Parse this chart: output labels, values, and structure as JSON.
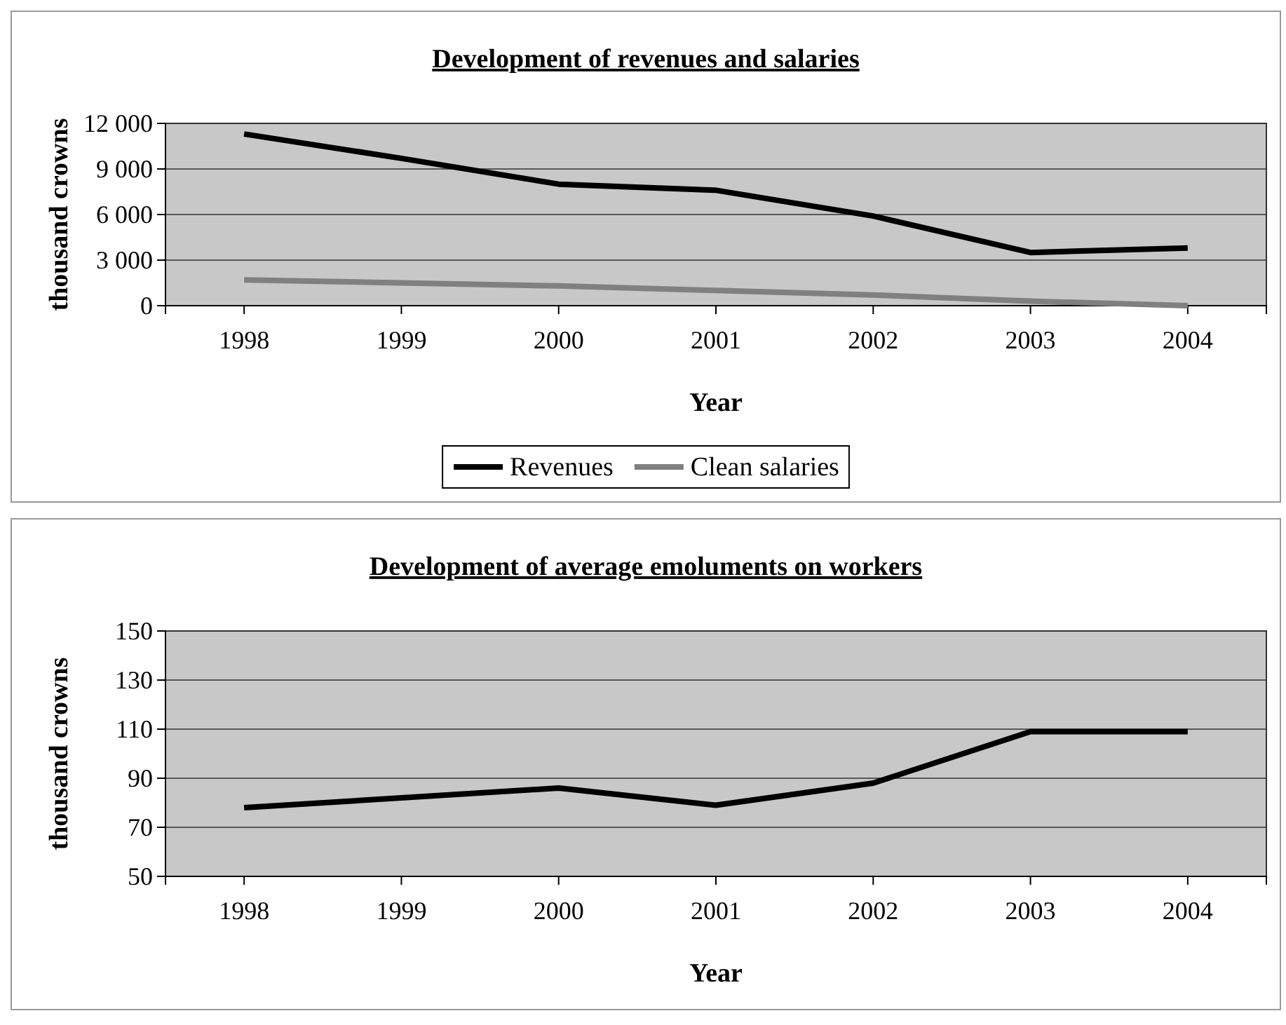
{
  "chart_data": [
    {
      "type": "line",
      "title": "Development of revenues and salaries",
      "xlabel": "Year",
      "ylabel": "thousand crowns",
      "categories": [
        "1998",
        "1999",
        "2000",
        "2001",
        "2002",
        "2003",
        "2004"
      ],
      "series": [
        {
          "name": "Revenues",
          "color": "#000000",
          "values": [
            11300,
            9700,
            8000,
            7600,
            5900,
            3500,
            3800
          ]
        },
        {
          "name": "Clean salaries",
          "color": "#808080",
          "values": [
            1700,
            1500,
            1300,
            1000,
            700,
            300,
            0
          ]
        }
      ],
      "ylim": [
        0,
        12000
      ],
      "yticks": [
        0,
        {
          "value": 3000,
          "label": "3 000"
        },
        {
          "value": 6000,
          "label": "6 000"
        },
        {
          "value": 9000,
          "label": "9 000"
        },
        {
          "value": 12000,
          "label": "12 000"
        }
      ],
      "grid": "y",
      "legend": "bottom",
      "marker": "none"
    },
    {
      "type": "line",
      "title": "Development of average emoluments on workers",
      "xlabel": "Year",
      "ylabel": "thousand crowns",
      "categories": [
        "1998",
        "1999",
        "2000",
        "2001",
        "2002",
        "2003",
        "2004"
      ],
      "series": [
        {
          "color": "#000000",
          "values": [
            78,
            82,
            86,
            79,
            88,
            109,
            109
          ]
        }
      ],
      "ylim": [
        50,
        150
      ],
      "yticks": [
        50,
        70,
        90,
        110,
        130,
        150
      ],
      "grid": "y",
      "marker": "none"
    }
  ]
}
